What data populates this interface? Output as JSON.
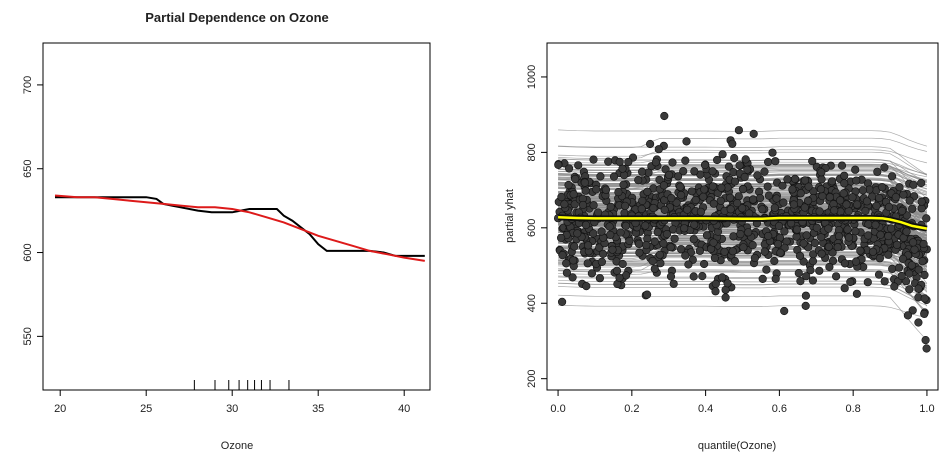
{
  "chart_data": [
    {
      "type": "line",
      "title": "Partial Dependence on Ozone",
      "xlabel": "Ozone",
      "ylabel": "",
      "xlim": [
        19,
        41.5
      ],
      "ylim": [
        518,
        725
      ],
      "xticks": [
        20,
        25,
        30,
        35,
        40
      ],
      "yticks": [
        550,
        600,
        650,
        700
      ],
      "series": [
        {
          "color": "#000000",
          "x": [
            19.7,
            21,
            22,
            23,
            24,
            25,
            25.6,
            26,
            26.5,
            27,
            28,
            28.8,
            29.5,
            30,
            30.5,
            31,
            32,
            32.6,
            33,
            33.5,
            34,
            34.5,
            35,
            35.5,
            36,
            37,
            38,
            38.8,
            39.5,
            41.2
          ],
          "values": [
            633,
            633,
            633,
            633,
            633,
            633,
            632,
            629,
            628,
            627,
            625,
            624,
            624,
            624,
            625,
            626,
            626,
            626,
            622,
            619,
            615,
            611,
            605,
            601,
            601,
            601,
            601,
            600,
            598,
            598
          ]
        },
        {
          "color": "#dd1a1a",
          "x": [
            19.7,
            21,
            22,
            23,
            24,
            25,
            26,
            27,
            28,
            29,
            30,
            31,
            32,
            33,
            34,
            35,
            36,
            37,
            38,
            39,
            40,
            41.2
          ],
          "values": [
            634,
            633,
            633,
            632,
            631,
            630,
            629,
            628,
            627,
            627,
            626,
            624,
            621,
            618,
            614,
            610,
            607,
            604,
            601,
            599,
            597,
            595
          ]
        }
      ],
      "rug": [
        27.8,
        29.0,
        29.8,
        30.4,
        30.9,
        31.3,
        31.7,
        32.2,
        33.3
      ]
    },
    {
      "type": "scatter",
      "title": "",
      "xlabel": "quantile(Ozone)",
      "ylabel": "partial yhat",
      "xlim": [
        -0.03,
        1.03
      ],
      "ylim": [
        170,
        1090
      ],
      "xticks": [
        0.0,
        0.2,
        0.4,
        0.6,
        0.8,
        1.0
      ],
      "xtick_labels": [
        "0.0",
        "0.2",
        "0.4",
        "0.6",
        "0.8",
        "1.0"
      ],
      "yticks": [
        200,
        400,
        600,
        800,
        1000
      ],
      "ice_line_color": "#8c8c8c",
      "point_color": "#3a3a3a",
      "pdp_outline_color": "#111111",
      "pdp_color": "#ffff00",
      "pdp": {
        "x": [
          0.0,
          0.05,
          0.1,
          0.2,
          0.3,
          0.4,
          0.5,
          0.55,
          0.6,
          0.7,
          0.8,
          0.85,
          0.88,
          0.9,
          0.93,
          0.96,
          1.0
        ],
        "values": [
          628,
          626,
          625,
          625,
          625,
          625,
          624,
          624,
          626,
          626,
          626,
          626,
          625,
          622,
          615,
          605,
          598
        ]
      }
    }
  ]
}
